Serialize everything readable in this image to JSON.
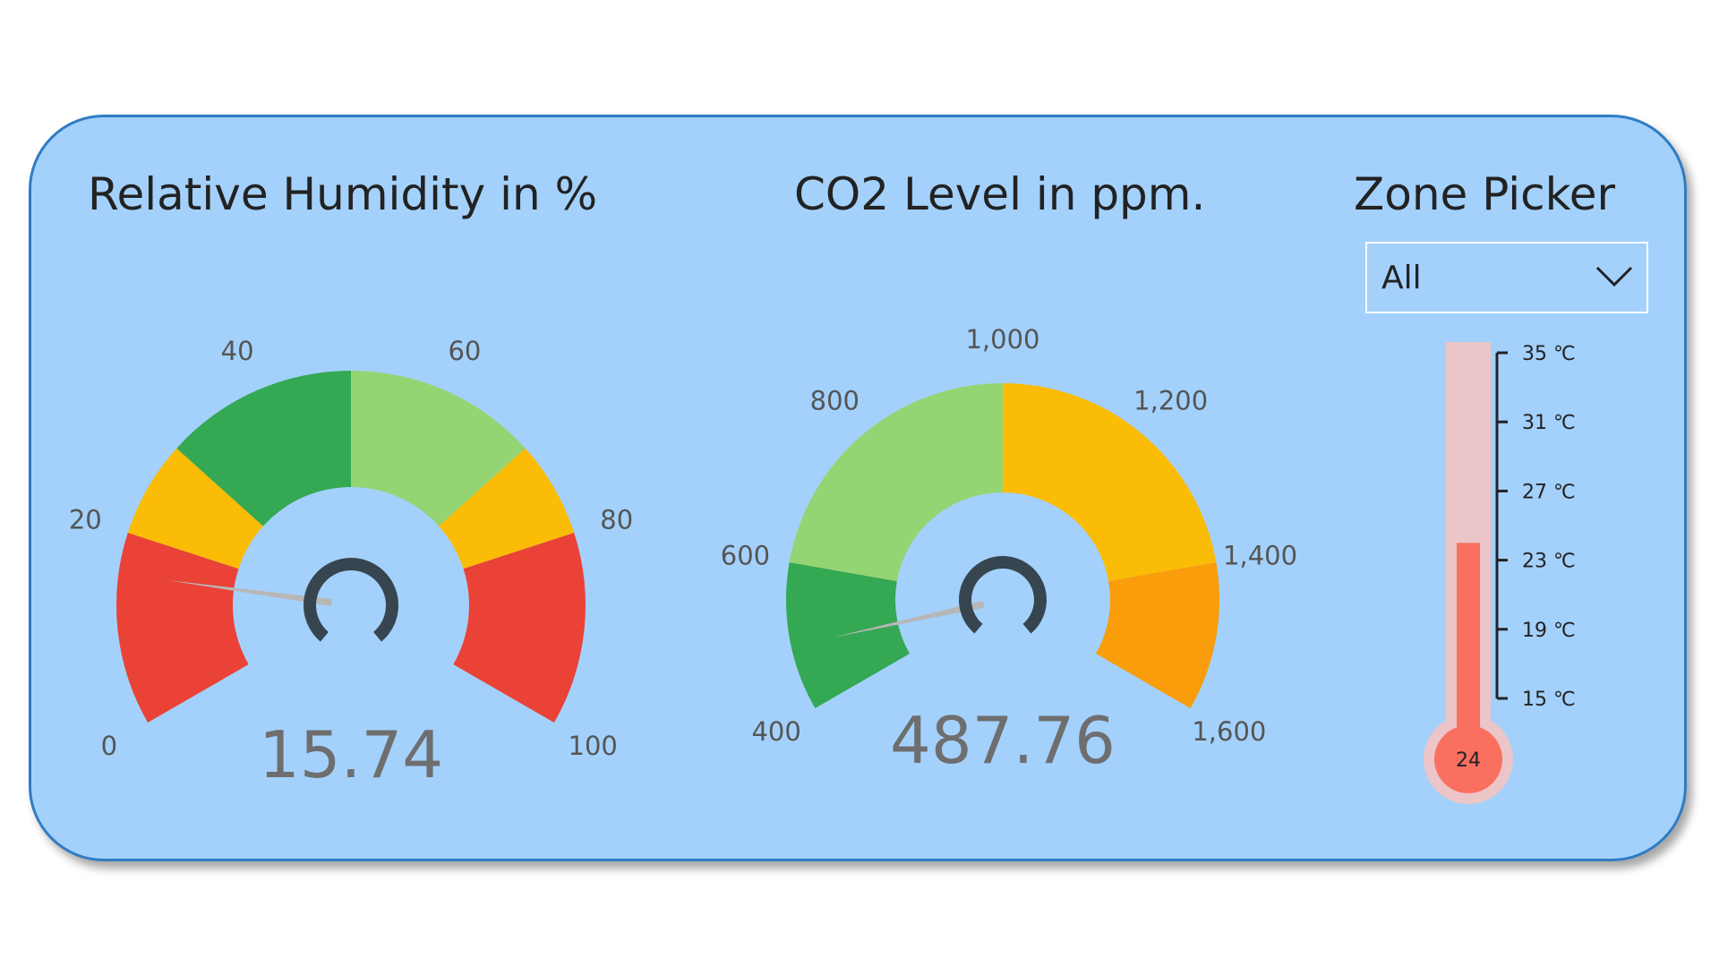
{
  "humidity": {
    "title": "Relative Humidity in %"
  },
  "co2": {
    "title": "CO2 Level in ppm."
  },
  "zone_picker": {
    "title": "Zone Picker",
    "selected": "All"
  },
  "colors": {
    "panel_bg": "#a3d1fb",
    "panel_border": "#2f7cc4",
    "red": "#ea4236",
    "amber": "#fbbc05",
    "dark_green": "#34a853",
    "light_green": "#95d473",
    "orange": "#f99d0b",
    "needle": "#b7b7b7",
    "hub": "#36454f",
    "thermo_tube": "#ecc5c8",
    "thermo_fill": "#fa7060"
  },
  "chart_data": [
    {
      "type": "gauge",
      "name": "humidity-gauge",
      "min": 0,
      "max": 100,
      "value": 15.74,
      "value_label": "15.74",
      "ticks": [
        0,
        20,
        40,
        60,
        80,
        100
      ],
      "tick_labels": [
        "0",
        "20",
        "40",
        "60",
        "80",
        "100"
      ],
      "bands": [
        {
          "from": 0,
          "to": 20,
          "color": "#ea4236"
        },
        {
          "from": 20,
          "to": 30,
          "color": "#fbbc05"
        },
        {
          "from": 30,
          "to": 50,
          "color": "#34a853"
        },
        {
          "from": 50,
          "to": 70,
          "color": "#95d473"
        },
        {
          "from": 70,
          "to": 80,
          "color": "#fbbc05"
        },
        {
          "from": 80,
          "to": 100,
          "color": "#ea4236"
        }
      ]
    },
    {
      "type": "gauge",
      "name": "co2-gauge",
      "min": 400,
      "max": 1600,
      "value": 487.76,
      "value_label": "487.76",
      "ticks": [
        400,
        600,
        800,
        1000,
        1200,
        1400,
        1600
      ],
      "tick_labels": [
        "400",
        "600",
        "800",
        "1,000",
        "1,200",
        "1,400",
        "1,600"
      ],
      "bands": [
        {
          "from": 400,
          "to": 600,
          "color": "#34a853"
        },
        {
          "from": 600,
          "to": 1000,
          "color": "#95d473"
        },
        {
          "from": 1000,
          "to": 1400,
          "color": "#fbbc05"
        },
        {
          "from": 1400,
          "to": 1600,
          "color": "#f99d0b"
        }
      ]
    },
    {
      "type": "thermometer",
      "name": "temperature-thermometer",
      "min": 15,
      "max": 35,
      "value": 24,
      "value_label": "24",
      "ticks": [
        15,
        19,
        23,
        27,
        31,
        35
      ],
      "tick_labels": [
        "15 ℃",
        "19 ℃",
        "23 ℃",
        "27 ℃",
        "31 ℃",
        "35 ℃"
      ]
    }
  ]
}
